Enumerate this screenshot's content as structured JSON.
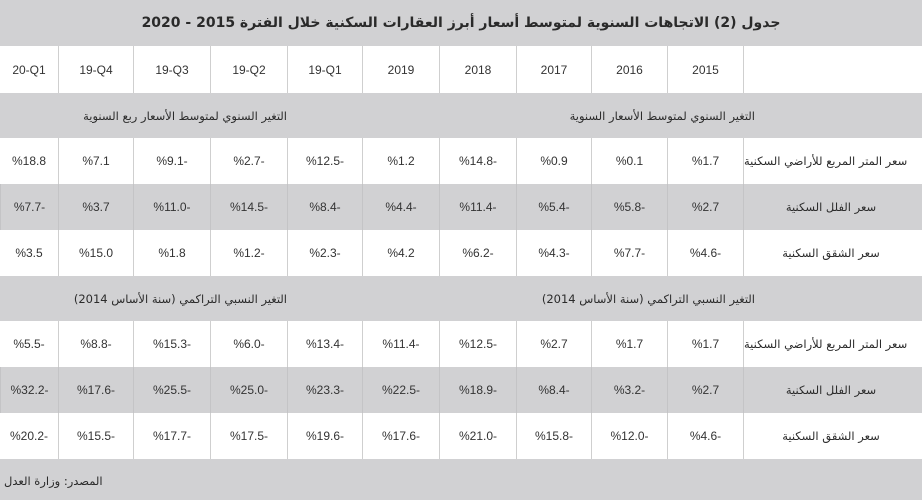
{
  "title": "جدول (2) الاتجاهات السنوية لمتوسط أسعار أبرز العقارات السكنية خلال الفترة 2015 - 2020",
  "columns": [
    "2015",
    "2016",
    "2017",
    "2018",
    "2019",
    "19-Q1",
    "19-Q2",
    "19-Q3",
    "19-Q4",
    "20-Q1"
  ],
  "sections": [
    {
      "label_annual": "التغير السنوي لمتوسط الأسعار السنوية",
      "label_quarterly": "التغير السنوي لمتوسط الأسعار ربع السنوية",
      "rows": [
        {
          "label": "سعر المتر المربع للأراضي السكنية",
          "values": [
            "%1.7",
            "%0.1",
            "%0.9",
            "%14.8-",
            "%1.2",
            "%12.5-",
            "%2.7-",
            "%9.1-",
            "%7.1",
            "%18.8"
          ]
        },
        {
          "label": "سعر الفلل السكنية",
          "values": [
            "%2.7",
            "%5.8-",
            "%5.4-",
            "%11.4-",
            "%4.4-",
            "%8.4-",
            "%14.5-",
            "%11.0-",
            "%3.7",
            "%7.7-"
          ]
        },
        {
          "label": "سعر الشقق السكنية",
          "values": [
            "%4.6-",
            "%7.7-",
            "%4.3-",
            "%6.2-",
            "%4.2",
            "%2.3-",
            "%1.2-",
            "%1.8",
            "%15.0",
            "%3.5"
          ]
        }
      ]
    },
    {
      "label_annual": "التغير النسبي التراكمي (سنة الأساس 2014)",
      "label_quarterly": "التغير النسبي التراكمي  (سنة الأساس 2014)",
      "rows": [
        {
          "label": "سعر المتر المربع للأراضي السكنية",
          "values": [
            "%1.7",
            "%1.7",
            "%2.7",
            "%12.5-",
            "%11.4-",
            "%13.4-",
            "%6.0-",
            "%15.3-",
            "%8.8-",
            "%5.5-"
          ]
        },
        {
          "label": "سعر الفلل السكنية",
          "values": [
            "%2.7",
            "%3.2-",
            "%8.4-",
            "%18.9-",
            "%22.5-",
            "%23.3-",
            "%25.0-",
            "%25.5-",
            "%17.6-",
            "%32.2-"
          ]
        },
        {
          "label": "سعر الشقق السكنية",
          "values": [
            "%4.6-",
            "%12.0-",
            "%15.8-",
            "%21.0-",
            "%17.6-",
            "%19.6-",
            "%17.5-",
            "%17.7-",
            "%15.5-",
            "%20.2-"
          ]
        }
      ]
    }
  ],
  "source": "المصدر: وزارة العدل",
  "colors": {
    "background_gray": "#d1d1d3",
    "cell_white": "#ffffff",
    "text": "#2b2b2b"
  }
}
